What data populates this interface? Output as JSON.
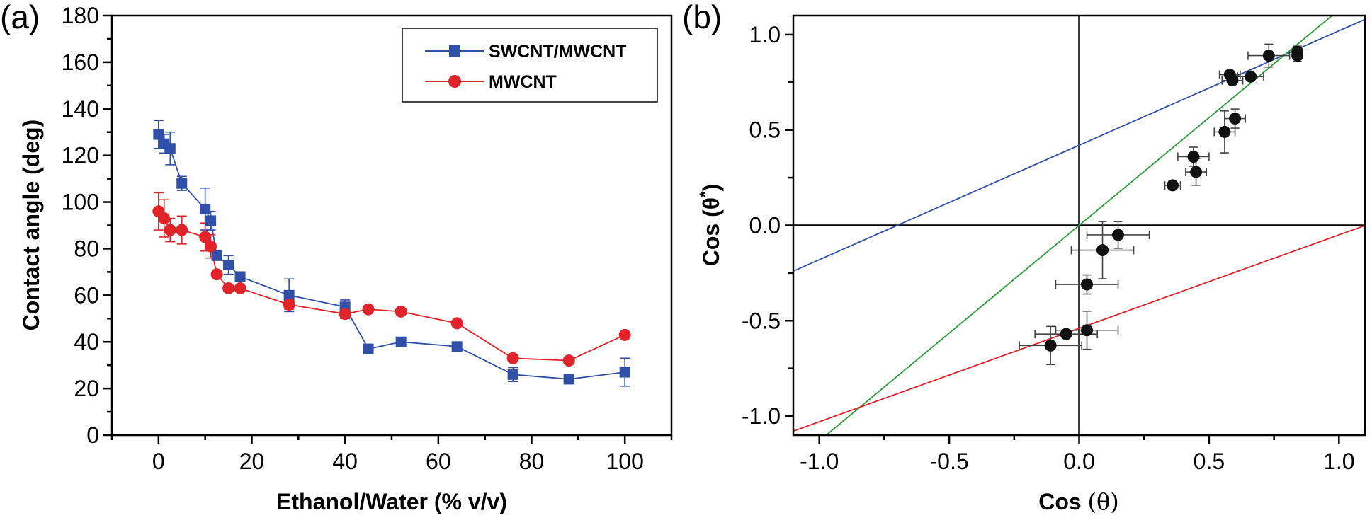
{
  "chart_data": [
    {
      "panel": "(a)",
      "type": "line",
      "title": "",
      "xlabel": "Ethanol/Water (% v/v)",
      "ylabel": "Contact angle (deg)",
      "xlim": [
        -10,
        110
      ],
      "ylim": [
        0,
        180
      ],
      "xticks": [
        0,
        20,
        40,
        60,
        80,
        100
      ],
      "yticks": [
        0,
        20,
        40,
        60,
        80,
        100,
        120,
        140,
        160,
        180
      ],
      "xtick_labels": [
        "0",
        "20",
        "40",
        "60",
        "80",
        "100"
      ],
      "ytick_labels": [
        "0",
        "20",
        "40",
        "60",
        "80",
        "100",
        "120",
        "140",
        "160",
        "180"
      ],
      "legend_position": "top-right",
      "grid": false,
      "series": [
        {
          "name": "SWCNT/MWCNT",
          "color": "#2f4fa8",
          "marker": "square",
          "points": [
            {
              "x": 0,
              "y": 129,
              "err": 6
            },
            {
              "x": 1.2,
              "y": 125,
              "err": 4
            },
            {
              "x": 2.5,
              "y": 123,
              "err": 7
            },
            {
              "x": 5,
              "y": 108,
              "err": 3
            },
            {
              "x": 10,
              "y": 97,
              "err": 9
            },
            {
              "x": 11.2,
              "y": 92,
              "err": 4
            },
            {
              "x": 12.5,
              "y": 77,
              "err": 0
            },
            {
              "x": 15,
              "y": 73,
              "err": 4
            },
            {
              "x": 17.5,
              "y": 68,
              "err": 0
            },
            {
              "x": 28,
              "y": 60,
              "err": 7
            },
            {
              "x": 40,
              "y": 55,
              "err": 3
            },
            {
              "x": 45,
              "y": 37,
              "err": 0
            },
            {
              "x": 52,
              "y": 40,
              "err": 0
            },
            {
              "x": 64,
              "y": 38,
              "err": 0
            },
            {
              "x": 76,
              "y": 26,
              "err": 3
            },
            {
              "x": 88,
              "y": 24,
              "err": 0
            },
            {
              "x": 100,
              "y": 27,
              "err": 6
            }
          ]
        },
        {
          "name": "MWCNT",
          "color": "#e0242a",
          "marker": "circle",
          "points": [
            {
              "x": 0,
              "y": 96,
              "err": 8
            },
            {
              "x": 1.2,
              "y": 93,
              "err": 8
            },
            {
              "x": 2.5,
              "y": 88,
              "err": 5
            },
            {
              "x": 5,
              "y": 88,
              "err": 6
            },
            {
              "x": 10,
              "y": 85,
              "err": 6
            },
            {
              "x": 11.2,
              "y": 81,
              "err": 5
            },
            {
              "x": 12.5,
              "y": 69,
              "err": 0
            },
            {
              "x": 15,
              "y": 63,
              "err": 0
            },
            {
              "x": 17.5,
              "y": 63,
              "err": 0
            },
            {
              "x": 28,
              "y": 56,
              "err": 2
            },
            {
              "x": 40,
              "y": 52,
              "err": 2
            },
            {
              "x": 45,
              "y": 54,
              "err": 0
            },
            {
              "x": 52,
              "y": 53,
              "err": 0
            },
            {
              "x": 64,
              "y": 48,
              "err": 0
            },
            {
              "x": 76,
              "y": 33,
              "err": 0
            },
            {
              "x": 88,
              "y": 32,
              "err": 0
            },
            {
              "x": 100,
              "y": 43,
              "err": 0
            }
          ]
        }
      ]
    },
    {
      "panel": "(b)",
      "type": "scatter",
      "title": "",
      "xlabel": "Cos (θ)",
      "ylabel": "Cos (θ*)",
      "xlabel_parts": {
        "main": "Cos ",
        "theta": "(θ)"
      },
      "ylabel_parts": {
        "main": "Cos (θ",
        "sup": "*",
        "close": ")"
      },
      "xlim": [
        -1.1,
        1.1
      ],
      "ylim": [
        -1.1,
        1.1
      ],
      "xticks": [
        -1.0,
        -0.5,
        0.0,
        0.5,
        1.0
      ],
      "yticks": [
        -1.0,
        -0.5,
        0.0,
        0.5,
        1.0
      ],
      "xtick_labels": [
        "-1.0",
        "-0.5",
        "0.0",
        "0.5",
        "1.0"
      ],
      "ytick_labels": [
        "-1.0",
        "-0.5",
        "0.0",
        "0.5",
        "1.0"
      ],
      "grid": false,
      "reference_axes": {
        "x0": true,
        "y0": true
      },
      "fit_lines": [
        {
          "name": "blue-line",
          "color": "#2f4fa8",
          "slope": 0.6,
          "intercept": 0.42
        },
        {
          "name": "green-line",
          "color": "#2e9b3a",
          "slope": 1.13,
          "intercept": 0.0
        },
        {
          "name": "red-line",
          "color": "#e0242a",
          "slope": 0.49,
          "intercept": -0.54
        }
      ],
      "points": [
        {
          "x": 0.84,
          "y": 0.91,
          "xerr": 0.0,
          "yerr": 0.03
        },
        {
          "x": 0.73,
          "y": 0.89,
          "xerr": 0.08,
          "yerr": 0.06
        },
        {
          "x": 0.84,
          "y": 0.89,
          "xerr": 0.0,
          "yerr": 0.03
        },
        {
          "x": 0.58,
          "y": 0.79,
          "xerr": 0.04,
          "yerr": 0.0
        },
        {
          "x": 0.59,
          "y": 0.76,
          "xerr": 0.04,
          "yerr": 0.0
        },
        {
          "x": 0.66,
          "y": 0.78,
          "xerr": 0.05,
          "yerr": 0.0
        },
        {
          "x": 0.6,
          "y": 0.56,
          "xerr": 0.04,
          "yerr": 0.05
        },
        {
          "x": 0.56,
          "y": 0.49,
          "xerr": 0.04,
          "yerr": 0.11
        },
        {
          "x": 0.44,
          "y": 0.36,
          "xerr": 0.06,
          "yerr": 0.05
        },
        {
          "x": 0.45,
          "y": 0.28,
          "xerr": 0.04,
          "yerr": 0.07
        },
        {
          "x": 0.36,
          "y": 0.21,
          "xerr": 0.03,
          "yerr": 0.0
        },
        {
          "x": 0.15,
          "y": -0.05,
          "xerr": 0.12,
          "yerr": 0.07
        },
        {
          "x": 0.09,
          "y": -0.13,
          "xerr": 0.12,
          "yerr": 0.15
        },
        {
          "x": 0.03,
          "y": -0.31,
          "xerr": 0.12,
          "yerr": 0.05
        },
        {
          "x": 0.03,
          "y": -0.55,
          "xerr": 0.12,
          "yerr": 0.1
        },
        {
          "x": -0.05,
          "y": -0.57,
          "xerr": 0.12,
          "yerr": 0.0
        },
        {
          "x": -0.11,
          "y": -0.63,
          "xerr": 0.12,
          "yerr": 0.1
        }
      ]
    }
  ]
}
